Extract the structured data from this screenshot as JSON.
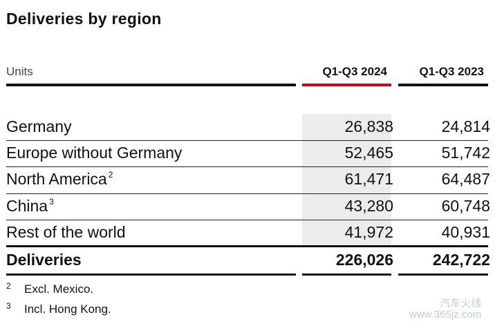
{
  "title": "Deliveries by region",
  "header": {
    "units": "Units",
    "col1": "Q1-Q3 2024",
    "col2": "Q1-Q3 2023"
  },
  "rows": [
    {
      "label": "Germany",
      "sup": "",
      "q2024": "26,838",
      "q2023": "24,814"
    },
    {
      "label": "Europe without Germany",
      "sup": "",
      "q2024": "52,465",
      "q2023": "51,742"
    },
    {
      "label": "North America",
      "sup": "2",
      "q2024": "61,471",
      "q2023": "64,487"
    },
    {
      "label": "China",
      "sup": "3",
      "q2024": "43,280",
      "q2023": "60,748"
    },
    {
      "label": "Rest of the world",
      "sup": "",
      "q2024": "41,972",
      "q2023": "40,931"
    }
  ],
  "total": {
    "label": "Deliveries",
    "q2024": "226,026",
    "q2023": "242,722"
  },
  "footnotes": [
    {
      "mark": "2",
      "text": "Excl. Mexico."
    },
    {
      "mark": "3",
      "text": "Incl. Hong Kong."
    }
  ],
  "watermark": {
    "line1": "汽车火线",
    "line2": "www.365jz.com"
  },
  "colors": {
    "accent": "#d5001c",
    "shade": "#ececec"
  }
}
